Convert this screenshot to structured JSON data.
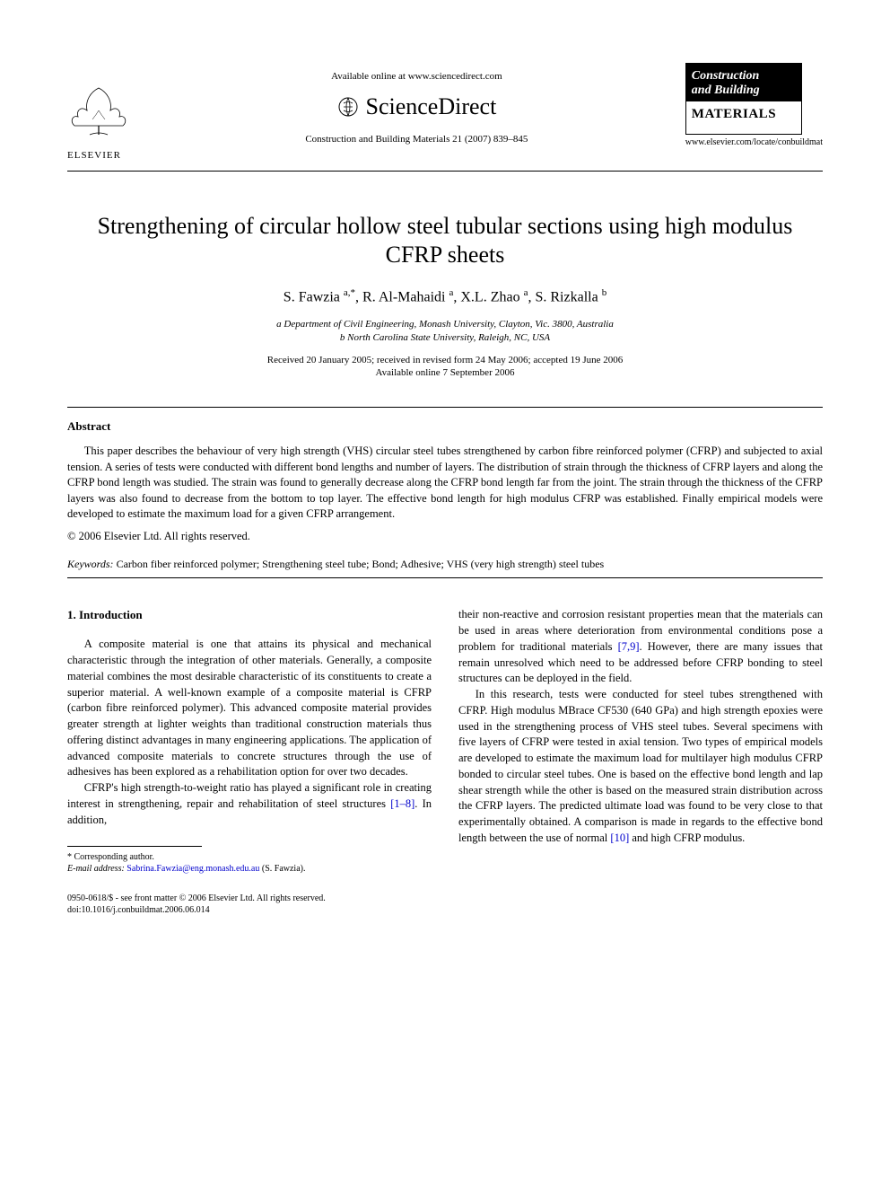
{
  "header": {
    "elsevier_label": "ELSEVIER",
    "available_online": "Available online at www.sciencedirect.com",
    "sciencedirect_label": "ScienceDirect",
    "journal_ref": "Construction and Building Materials 21 (2007) 839–845",
    "journal_logo_top1": "Construction",
    "journal_logo_top2": "and Building",
    "journal_logo_bottom": "MATERIALS",
    "journal_url": "www.elsevier.com/locate/conbuildmat"
  },
  "title": "Strengthening of circular hollow steel tubular sections using high modulus CFRP sheets",
  "authors_html": "S. Fawzia <sup>a,*</sup>, R. Al-Mahaidi <sup>a</sup>, X.L. Zhao <sup>a</sup>, S. Rizkalla <sup>b</sup>",
  "affiliations": [
    "a Department of Civil Engineering, Monash University, Clayton, Vic. 3800, Australia",
    "b North Carolina State University, Raleigh, NC, USA"
  ],
  "dates": {
    "received": "Received 20 January 2005; received in revised form 24 May 2006; accepted 19 June 2006",
    "available": "Available online 7 September 2006"
  },
  "abstract": {
    "heading": "Abstract",
    "body": "This paper describes the behaviour of very high strength (VHS) circular steel tubes strengthened by carbon fibre reinforced polymer (CFRP) and subjected to axial tension. A series of tests were conducted with different bond lengths and number of layers. The distribution of strain through the thickness of CFRP layers and along the CFRP bond length was studied. The strain was found to generally decrease along the CFRP bond length far from the joint. The strain through the thickness of the CFRP layers was also found to decrease from the bottom to top layer. The effective bond length for high modulus CFRP was established. Finally empirical models were developed to estimate the maximum load for a given CFRP arrangement.",
    "copyright": "© 2006 Elsevier Ltd. All rights reserved."
  },
  "keywords": {
    "label": "Keywords:",
    "text": "Carbon fiber reinforced polymer; Strengthening steel tube; Bond; Adhesive; VHS (very high strength) steel tubes"
  },
  "introduction": {
    "heading": "1. Introduction",
    "para1": "A composite material is one that attains its physical and mechanical characteristic through the integration of other materials. Generally, a composite material combines the most desirable characteristic of its constituents to create a superior material. A well-known example of a composite material is CFRP (carbon fibre reinforced polymer). This advanced composite material provides greater strength at lighter weights than traditional construction materials thus offering distinct advantages in many engineering applications. The application of advanced composite materials to concrete structures through the use of adhesives has been explored as a rehabilitation option for over two decades.",
    "para2a": "CFRP's high strength-to-weight ratio has played a significant role in creating interest in strengthening, repair and rehabilitation of steel structures ",
    "ref1": "[1–8]",
    "para2b": ". In addition, ",
    "para3a": "their non-reactive and corrosion resistant properties mean that the materials can be used in areas where deterioration from environmental conditions pose a problem for traditional materials ",
    "ref2": "[7,9]",
    "para3b": ". However, there are many issues that remain unresolved which need to be addressed before CFRP bonding to steel structures can be deployed in the field.",
    "para4a": "In this research, tests were conducted for steel tubes strengthened with CFRP. High modulus MBrace CF530 (640 GPa) and high strength epoxies were used in the strengthening process of VHS steel tubes. Several specimens with five layers of CFRP were tested in axial tension. Two types of empirical models are developed to estimate the maximum load for multilayer high modulus CFRP bonded to circular steel tubes. One is based on the effective bond length and lap shear strength while the other is based on the measured strain distribution across the CFRP layers. The predicted ultimate load was found to be very close to that experimentally obtained. A comparison is made in regards to the effective bond length between the use of normal ",
    "ref3": "[10]",
    "para4b": " and high CFRP modulus."
  },
  "footnote": {
    "corresponding": "* Corresponding author.",
    "email_label": "E-mail address:",
    "email": "Sabrina.Fawzia@eng.monash.edu.au",
    "email_author": "(S. Fawzia)."
  },
  "footer": {
    "issn": "0950-0618/$ - see front matter © 2006 Elsevier Ltd. All rights reserved.",
    "doi": "doi:10.1016/j.conbuildmat.2006.06.014"
  },
  "colors": {
    "text": "#000000",
    "bg": "#ffffff",
    "link": "#0000cc"
  }
}
